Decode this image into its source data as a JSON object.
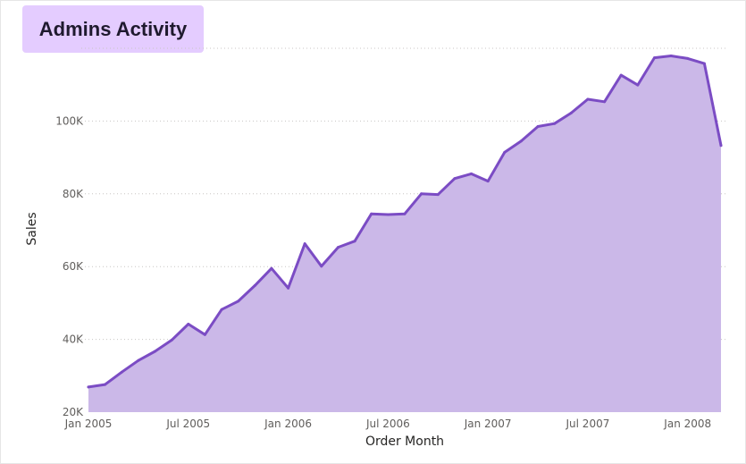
{
  "card": {
    "title": "Admins Activity"
  },
  "chart_data": {
    "type": "area",
    "title": "Admins Activity",
    "xlabel": "Order Month",
    "ylabel": "Sales",
    "ylim": [
      20000,
      120000
    ],
    "y_ticks": [
      {
        "value": 20000,
        "label": "20K"
      },
      {
        "value": 40000,
        "label": "40K"
      },
      {
        "value": 60000,
        "label": "60K"
      },
      {
        "value": 80000,
        "label": "80K"
      },
      {
        "value": 100000,
        "label": "100K"
      }
    ],
    "x_ticks": [
      {
        "index": 0,
        "label": "Jan 2005"
      },
      {
        "index": 6,
        "label": "Jul 2005"
      },
      {
        "index": 12,
        "label": "Jan 2006"
      },
      {
        "index": 18,
        "label": "Jul 2006"
      },
      {
        "index": 24,
        "label": "Jan 2007"
      },
      {
        "index": 30,
        "label": "Jul 2007"
      },
      {
        "index": 36,
        "label": "Jan 2008"
      }
    ],
    "grid": true,
    "colors": {
      "line": "#7b4cc4",
      "fill": "#cbb8e8",
      "grid": "#c8c6c4"
    },
    "series": [
      {
        "name": "Sales",
        "x": [
          "2005-01",
          "2005-02",
          "2005-03",
          "2005-04",
          "2005-05",
          "2005-06",
          "2005-07",
          "2005-08",
          "2005-09",
          "2005-10",
          "2005-11",
          "2005-12",
          "2006-01",
          "2006-02",
          "2006-03",
          "2006-04",
          "2006-05",
          "2006-06",
          "2006-07",
          "2006-08",
          "2006-09",
          "2006-10",
          "2006-11",
          "2006-12",
          "2007-01",
          "2007-02",
          "2007-03",
          "2007-04",
          "2007-05",
          "2007-06",
          "2007-07",
          "2007-08",
          "2007-09",
          "2007-10",
          "2007-11",
          "2007-12",
          "2008-01",
          "2008-02",
          "2008-03"
        ],
        "values": [
          26900,
          27600,
          31000,
          34200,
          36700,
          39800,
          44200,
          41300,
          48200,
          50500,
          54800,
          59500,
          54100,
          66300,
          60100,
          65300,
          67000,
          74500,
          74300,
          74500,
          80000,
          79800,
          84200,
          85500,
          83500,
          91400,
          94500,
          98500,
          99300,
          102200,
          106000,
          105300,
          112600,
          109900,
          117400,
          117900,
          117200,
          115800,
          93300
        ]
      }
    ]
  }
}
